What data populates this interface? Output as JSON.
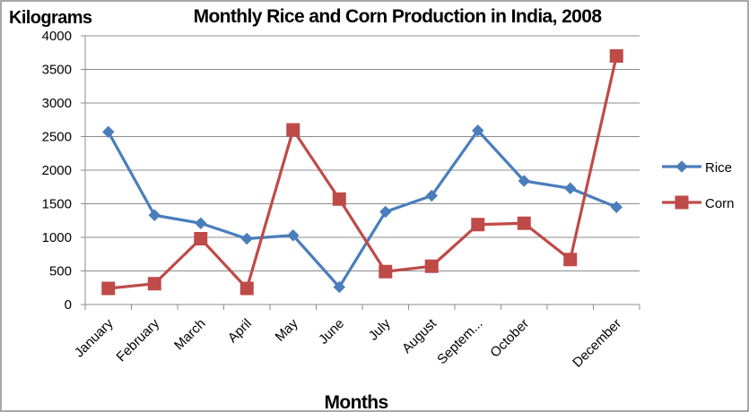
{
  "chart_data": {
    "type": "line",
    "title": "Monthly Rice and Corn Production in India, 2008",
    "ylabel": "Kilograms",
    "xlabel": "Months",
    "categories": [
      "January",
      "February",
      "March",
      "April",
      "May",
      "June",
      "July",
      "August",
      "Septem...",
      "October",
      "",
      "December"
    ],
    "ylim": [
      0,
      4000
    ],
    "yticks": [
      0,
      500,
      1000,
      1500,
      2000,
      2500,
      3000,
      3500,
      4000
    ],
    "grid": true,
    "legend_position": "right",
    "series": [
      {
        "name": "Rice",
        "color": "#4a7ebb",
        "marker": "diamond",
        "values": [
          2570,
          1330,
          1210,
          980,
          1030,
          260,
          1380,
          1620,
          2590,
          1840,
          1730,
          1450
        ]
      },
      {
        "name": "Corn",
        "color": "#be4b48",
        "marker": "square",
        "values": [
          240,
          310,
          980,
          240,
          2600,
          1570,
          490,
          570,
          1190,
          1210,
          670,
          3700
        ]
      }
    ]
  }
}
